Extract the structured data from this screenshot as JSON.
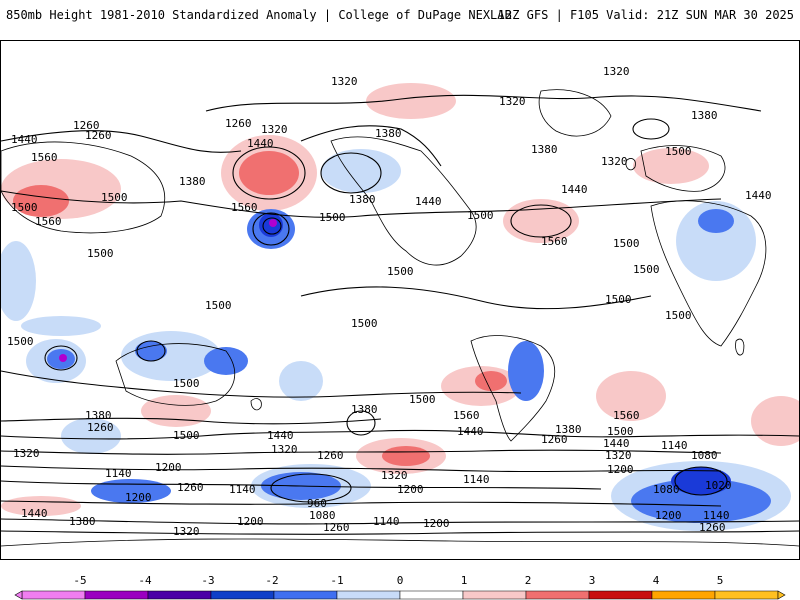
{
  "header": {
    "title_left": "850mb Height 1981-2010 Standardized Anomaly | College of DuPage NEXLAB",
    "title_right": "12Z GFS | F105 Valid: 21Z SUN MAR 30 2025"
  },
  "contour_labels": [
    "1320",
    "1380",
    "1260",
    "1200",
    "1140",
    "1080",
    "1020",
    "960",
    "1440",
    "1500",
    "1560"
  ],
  "colorbar": {
    "tick_labels": [
      "-5",
      "-4",
      "-3",
      "-2",
      "-1",
      "0",
      "1",
      "2",
      "3",
      "4",
      "5"
    ],
    "colors": [
      "#f07ef0",
      "#9a00c0",
      "#4b00a6",
      "#1040c8",
      "#4070f0",
      "#c8dcf8",
      "#ffffff",
      "#f8c8c8",
      "#f07070",
      "#c81010",
      "#ffa500",
      "#ffc020"
    ]
  },
  "legend_colors": {
    "strong_negative": "#1a3ad8",
    "moderate_negative": "#4a78f0",
    "weak_negative": "#c8dcf8",
    "weak_positive": "#f8c8c8",
    "moderate_positive": "#f07070",
    "strong_positive": "#d02020",
    "extreme_negative": "#b000d0"
  }
}
